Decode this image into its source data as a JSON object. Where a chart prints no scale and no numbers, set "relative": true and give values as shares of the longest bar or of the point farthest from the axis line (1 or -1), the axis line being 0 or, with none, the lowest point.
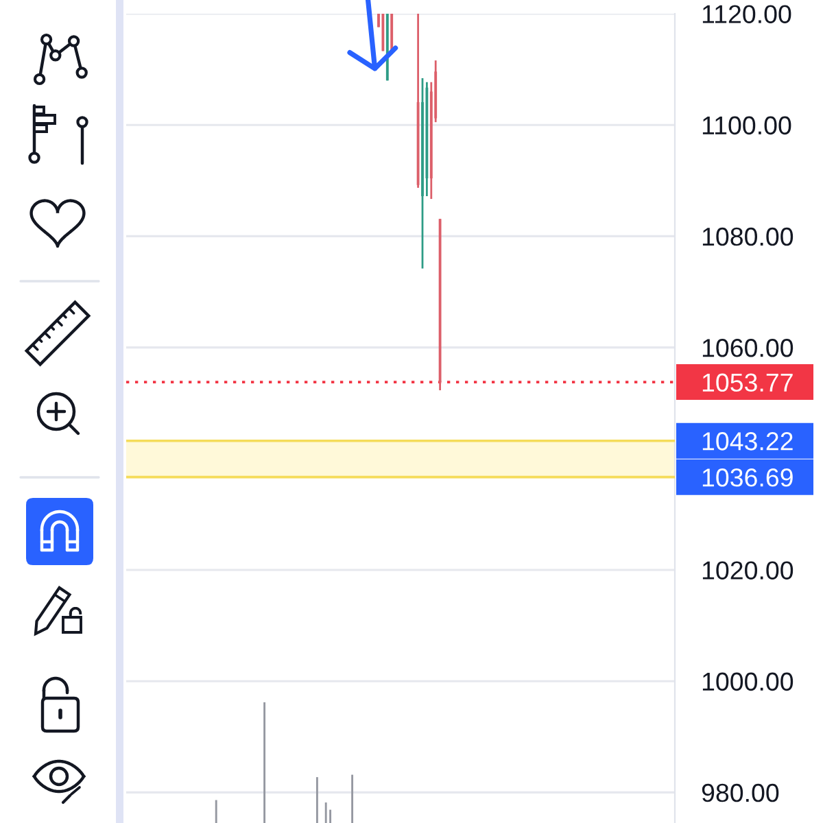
{
  "chart_data": [
    {
      "type": "candlestick",
      "categories": [
        null,
        null,
        null,
        null,
        null,
        null,
        null,
        null,
        null,
        null,
        null,
        null,
        null,
        null,
        null,
        null,
        null,
        null,
        null,
        null,
        null,
        null,
        null,
        null,
        null,
        null,
        null,
        null,
        null,
        null,
        null,
        null,
        null,
        null,
        null,
        null,
        null,
        null,
        null,
        null,
        null,
        null,
        null,
        null,
        null,
        null,
        null,
        null,
        null,
        null,
        null,
        null,
        null,
        null,
        null,
        null,
        null,
        null,
        null,
        null,
        null,
        null,
        null,
        null,
        null,
        null,
        null,
        null,
        null,
        null,
        null,
        null,
        null,
        null,
        null,
        null,
        null,
        null,
        null,
        null,
        null,
        null,
        null,
        null,
        null,
        null,
        null,
        null,
        null,
        null,
        null,
        null,
        null,
        null,
        null,
        null,
        null,
        null,
        null,
        null,
        null,
        null,
        null,
        null,
        null,
        null,
        null,
        null,
        null,
        null,
        null,
        null,
        null,
        null,
        null,
        null,
        null,
        null,
        null,
        null,
        null,
        null,
        null,
        null,
        null
      ],
      "ohlc": [
        null,
        null,
        null,
        null,
        null,
        null,
        null,
        null,
        null,
        null,
        null,
        null,
        null,
        null,
        null,
        null,
        null,
        null,
        null,
        null,
        null,
        null,
        null,
        null,
        null,
        null,
        null,
        null,
        null,
        null,
        null,
        null,
        null,
        null,
        null,
        null,
        null,
        null,
        null,
        null,
        null,
        null,
        null,
        null,
        null,
        null,
        null,
        null,
        null,
        null,
        null,
        null,
        null,
        null,
        null,
        null,
        null,
        [
          1120,
          1120,
          1117.6,
          1117.6
        ],
        [
          1120,
          1120,
          1113.3,
          1113.3
        ],
        [
          1108.0,
          1120,
          1108.0,
          1120
        ],
        [
          1120,
          1120,
          1112.8,
          1112.8
        ],
        null,
        null,
        null,
        null,
        null,
        [
          1104.1,
          1120,
          1088.7,
          1089.2
        ],
        [
          1087.2,
          1108.4,
          1074.2,
          1104.1
        ],
        [
          1090.4,
          1107.7,
          1087.2,
          1106.7
        ],
        [
          1106.0,
          1107.7,
          1086.7,
          1090.4
        ],
        [
          1109.6,
          1111.6,
          1100.5,
          1101.2
        ],
        [
          1083.1,
          1083.1,
          1052.3,
          1053.77
        ],
        null,
        null,
        null,
        null,
        null,
        null,
        null,
        null,
        null,
        null,
        null,
        null,
        null,
        null,
        null,
        null,
        null,
        null,
        null,
        null,
        null,
        null,
        null,
        null,
        null,
        null,
        null,
        null,
        null,
        null,
        null,
        null,
        null,
        null,
        null,
        null,
        null,
        null,
        null,
        null,
        null,
        null,
        null,
        null,
        null,
        null,
        null,
        null,
        null,
        null,
        null,
        null,
        null
      ],
      "colors": [
        null,
        null,
        null,
        null,
        null,
        null,
        null,
        null,
        null,
        null,
        null,
        null,
        null,
        null,
        null,
        null,
        null,
        null,
        null,
        null,
        null,
        null,
        null,
        null,
        null,
        null,
        null,
        null,
        null,
        null,
        null,
        null,
        null,
        null,
        null,
        null,
        null,
        null,
        null,
        null,
        null,
        null,
        null,
        null,
        null,
        null,
        null,
        null,
        null,
        null,
        null,
        null,
        null,
        null,
        null,
        null,
        null,
        "#dc5f6a",
        "#dc5f6a",
        "#2e9c86",
        "#dc5f6a",
        null,
        null,
        null,
        null,
        null,
        "#dc5f6a",
        "#2e9c86",
        "#2e9c86",
        "#dc5f6a",
        "#dc5f6a",
        "#dc5f6a",
        null,
        null,
        null,
        null,
        null,
        null,
        null,
        null,
        null,
        null,
        null,
        null,
        null,
        null,
        null,
        null,
        null,
        null,
        null,
        null,
        null,
        null,
        null,
        null,
        null,
        null,
        null,
        null,
        null,
        null,
        null,
        null,
        null,
        null,
        null,
        null,
        null,
        null,
        null,
        null,
        null,
        null,
        null,
        null,
        null,
        null,
        null,
        null,
        null,
        null,
        null,
        null,
        null
      ],
      "ylim": [
        974.5,
        1120
      ],
      "yticks": [
        {
          "value": 980,
          "label": "980.00"
        },
        {
          "value": 1000,
          "label": "1000.00"
        },
        {
          "value": 1020,
          "label": "1020.00"
        },
        {
          "value": 1060,
          "label": "1060.00"
        },
        {
          "value": 1080,
          "label": "1080.00"
        },
        {
          "value": 1100,
          "label": "1100.00"
        },
        {
          "value": 1120,
          "label": "1120.00"
        }
      ],
      "grid": "y",
      "tick_labels": "y",
      "ref_lines": [
        {
          "axis": "y",
          "value": 1053.77,
          "label": "1053.77",
          "color": "#f23645",
          "line_style": "dotted"
        },
        {
          "axis": "y",
          "value": 1043.22,
          "label": "1043.22",
          "color": "#f5dc5a",
          "line_style": "solid"
        },
        {
          "axis": "y",
          "value": 1036.69,
          "label": "1036.69",
          "color": "#f5dc5a",
          "line_style": "solid"
        }
      ],
      "bands": [
        {
          "axis": "y",
          "from": 1036.69,
          "to": 1043.22,
          "color": "#fff9d9"
        }
      ]
    },
    {
      "type": "bar",
      "relative": true,
      "categories": [
        null,
        null,
        null,
        null,
        null,
        null,
        null,
        null,
        null,
        null,
        null,
        null,
        null,
        null,
        null,
        null,
        null,
        null,
        null,
        null,
        null,
        null,
        null,
        null,
        null,
        null,
        null,
        null,
        null,
        null,
        null,
        null,
        null,
        null,
        null,
        null,
        null,
        null,
        null,
        null,
        null,
        null,
        null,
        null,
        null,
        null,
        null,
        null,
        null,
        null,
        null,
        null,
        null,
        null,
        null,
        null,
        null,
        null,
        null,
        null,
        null,
        null,
        null,
        null,
        null,
        null,
        null,
        null,
        null,
        null,
        null,
        null,
        null,
        null,
        null,
        null,
        null,
        null,
        null,
        null,
        null,
        null,
        null,
        null,
        null,
        null,
        null,
        null,
        null,
        null,
        null,
        null,
        null,
        null,
        null,
        null,
        null,
        null,
        null,
        null,
        null,
        null,
        null,
        null,
        null,
        null,
        null,
        null,
        null,
        null,
        null,
        null,
        null,
        null,
        null,
        null,
        null,
        null,
        null,
        null,
        null,
        null,
        null,
        null,
        null
      ],
      "values": [
        null,
        null,
        null,
        null,
        null,
        null,
        null,
        null,
        null,
        null,
        null,
        null,
        null,
        null,
        null,
        null,
        null,
        null,
        null,
        null,
        0.19,
        null,
        null,
        null,
        null,
        null,
        null,
        null,
        null,
        null,
        null,
        1,
        null,
        null,
        null,
        null,
        null,
        null,
        null,
        null,
        null,
        null,
        null,
        0.38,
        null,
        0.17,
        0.11,
        null,
        null,
        null,
        null,
        0.4,
        null,
        null,
        null,
        null,
        null,
        null,
        null,
        null,
        null,
        null,
        null,
        null,
        null,
        null,
        null,
        null,
        null,
        null,
        null,
        null,
        null,
        null,
        null,
        null,
        null,
        null,
        null,
        null,
        null,
        null,
        null,
        null,
        null,
        null,
        null,
        null,
        null,
        null,
        null,
        null,
        null,
        null,
        null,
        null,
        null,
        null,
        null,
        null,
        null,
        null,
        null,
        null,
        null,
        null,
        null,
        null,
        null,
        null,
        null,
        null,
        null,
        null,
        null,
        null,
        null,
        null,
        null,
        null,
        null,
        null,
        null,
        null,
        null
      ],
      "color": "#9598a1"
    }
  ]
}
